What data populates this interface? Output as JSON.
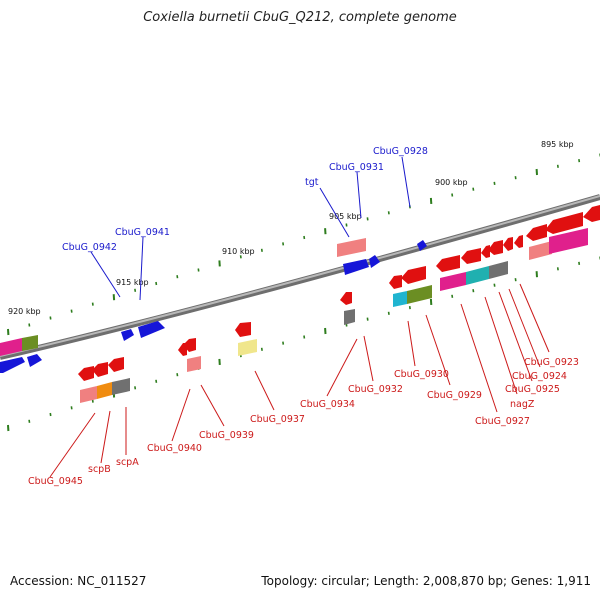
{
  "title": "Coxiella burnetii CbuG_Q212, complete genome",
  "footer": {
    "accession": "Accession: NC_011527",
    "stats": "Topology: circular; Length: 2,008,870 bp; Genes: 1,911"
  },
  "scale_labels": [
    "920 kbp",
    "915 kbp",
    "910 kbp",
    "905 kbp",
    "900 kbp",
    "895 kbp"
  ],
  "gene_labels_top": [
    "CbuG_0942",
    "CbuG_0941",
    "tgt",
    "CbuG_0931",
    "CbuG_0928"
  ],
  "gene_labels_bottom": [
    "CbuG_0945",
    "scpB",
    "scpA",
    "CbuG_0940",
    "CbuG_0939",
    "CbuG_0937",
    "CbuG_0934",
    "CbuG_0932",
    "CbuG_0930",
    "CbuG_0929",
    "CbuG_0927",
    "nagZ",
    "CbuG_0925",
    "CbuG_0924",
    "CbuG_0923"
  ],
  "colors": {
    "forward_cds": "#1616d8",
    "reverse_cds": "#e01010",
    "backbone": "#808080",
    "tick": "#2e7d1e",
    "cog_pink": "#f08080",
    "cog_magenta": "#e0208c",
    "cog_olive": "#6b8e23",
    "cog_cyan": "#20b4d0",
    "cog_teal": "#20b0b0",
    "cog_orange": "#f08c10",
    "cog_gray": "#707070",
    "cog_khaki": "#f0e68c"
  }
}
